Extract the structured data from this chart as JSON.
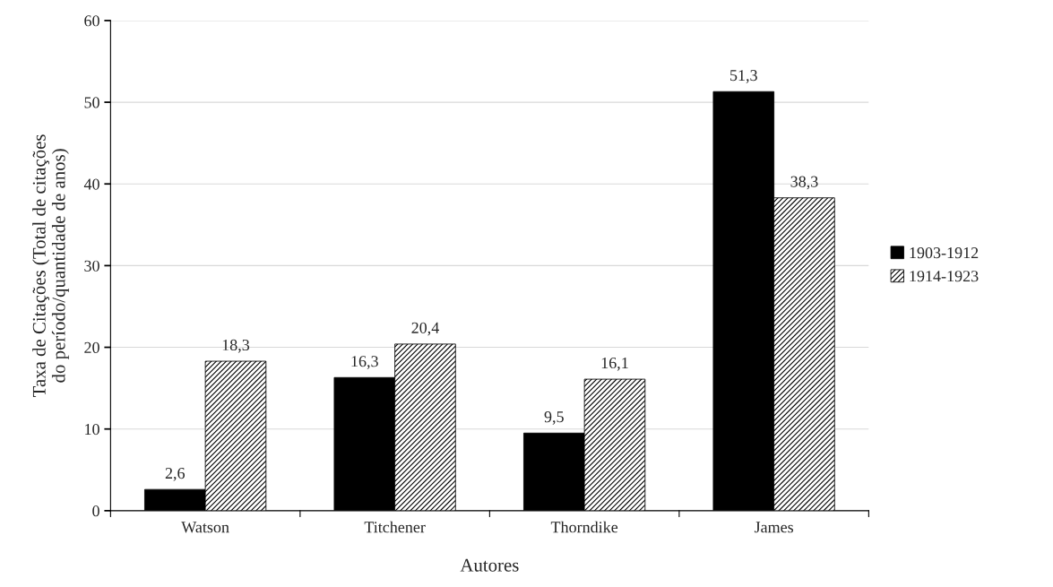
{
  "chart_data": {
    "type": "bar",
    "xlabel": "Autores",
    "ylabel": "Taxa de Citações (Total de citações\ndo período/quantidade de anos)",
    "categories": [
      "Watson",
      "Titchener",
      "Thorndike",
      "James"
    ],
    "series": [
      {
        "name": "1903-1912",
        "color": "#000000",
        "values": [
          2.6,
          16.3,
          9.5,
          51.3
        ],
        "value_labels": [
          "2,6",
          "16,3",
          "9,5",
          "51,3"
        ]
      },
      {
        "name": "1914-1923",
        "color": "#000000",
        "values": [
          18.3,
          20.4,
          16.1,
          38.3
        ],
        "value_labels": [
          "18,3",
          "20,4",
          "16,1",
          "38,3"
        ]
      }
    ],
    "ylim": [
      0,
      60
    ],
    "yticks": [
      0,
      10,
      20,
      30,
      40,
      50,
      60
    ],
    "grid": "y",
    "legend": "right"
  }
}
